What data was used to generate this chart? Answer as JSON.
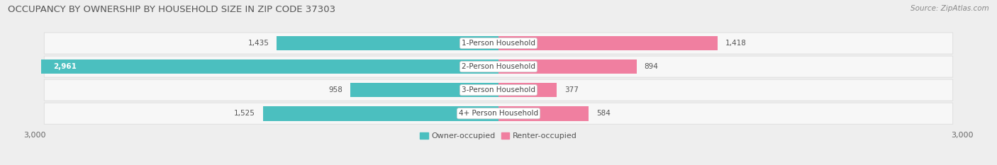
{
  "title": "OCCUPANCY BY OWNERSHIP BY HOUSEHOLD SIZE IN ZIP CODE 37303",
  "source": "Source: ZipAtlas.com",
  "categories": [
    "1-Person Household",
    "2-Person Household",
    "3-Person Household",
    "4+ Person Household"
  ],
  "owner_values": [
    1435,
    2961,
    958,
    1525
  ],
  "renter_values": [
    1418,
    894,
    377,
    584
  ],
  "x_max": 3000,
  "owner_color": "#4bbfbf",
  "renter_color": "#f07fa0",
  "owner_color_light": "#a8dede",
  "renter_color_light": "#f9c0d0",
  "background_color": "#eeeeee",
  "row_bg_color": "#f7f7f7",
  "row_edge_color": "#dddddd",
  "bar_height": 0.62,
  "figsize": [
    14.06,
    2.33
  ],
  "dpi": 100,
  "value_fontsize": 7.5,
  "label_fontsize": 7.5,
  "title_fontsize": 9.5,
  "source_fontsize": 7.5
}
